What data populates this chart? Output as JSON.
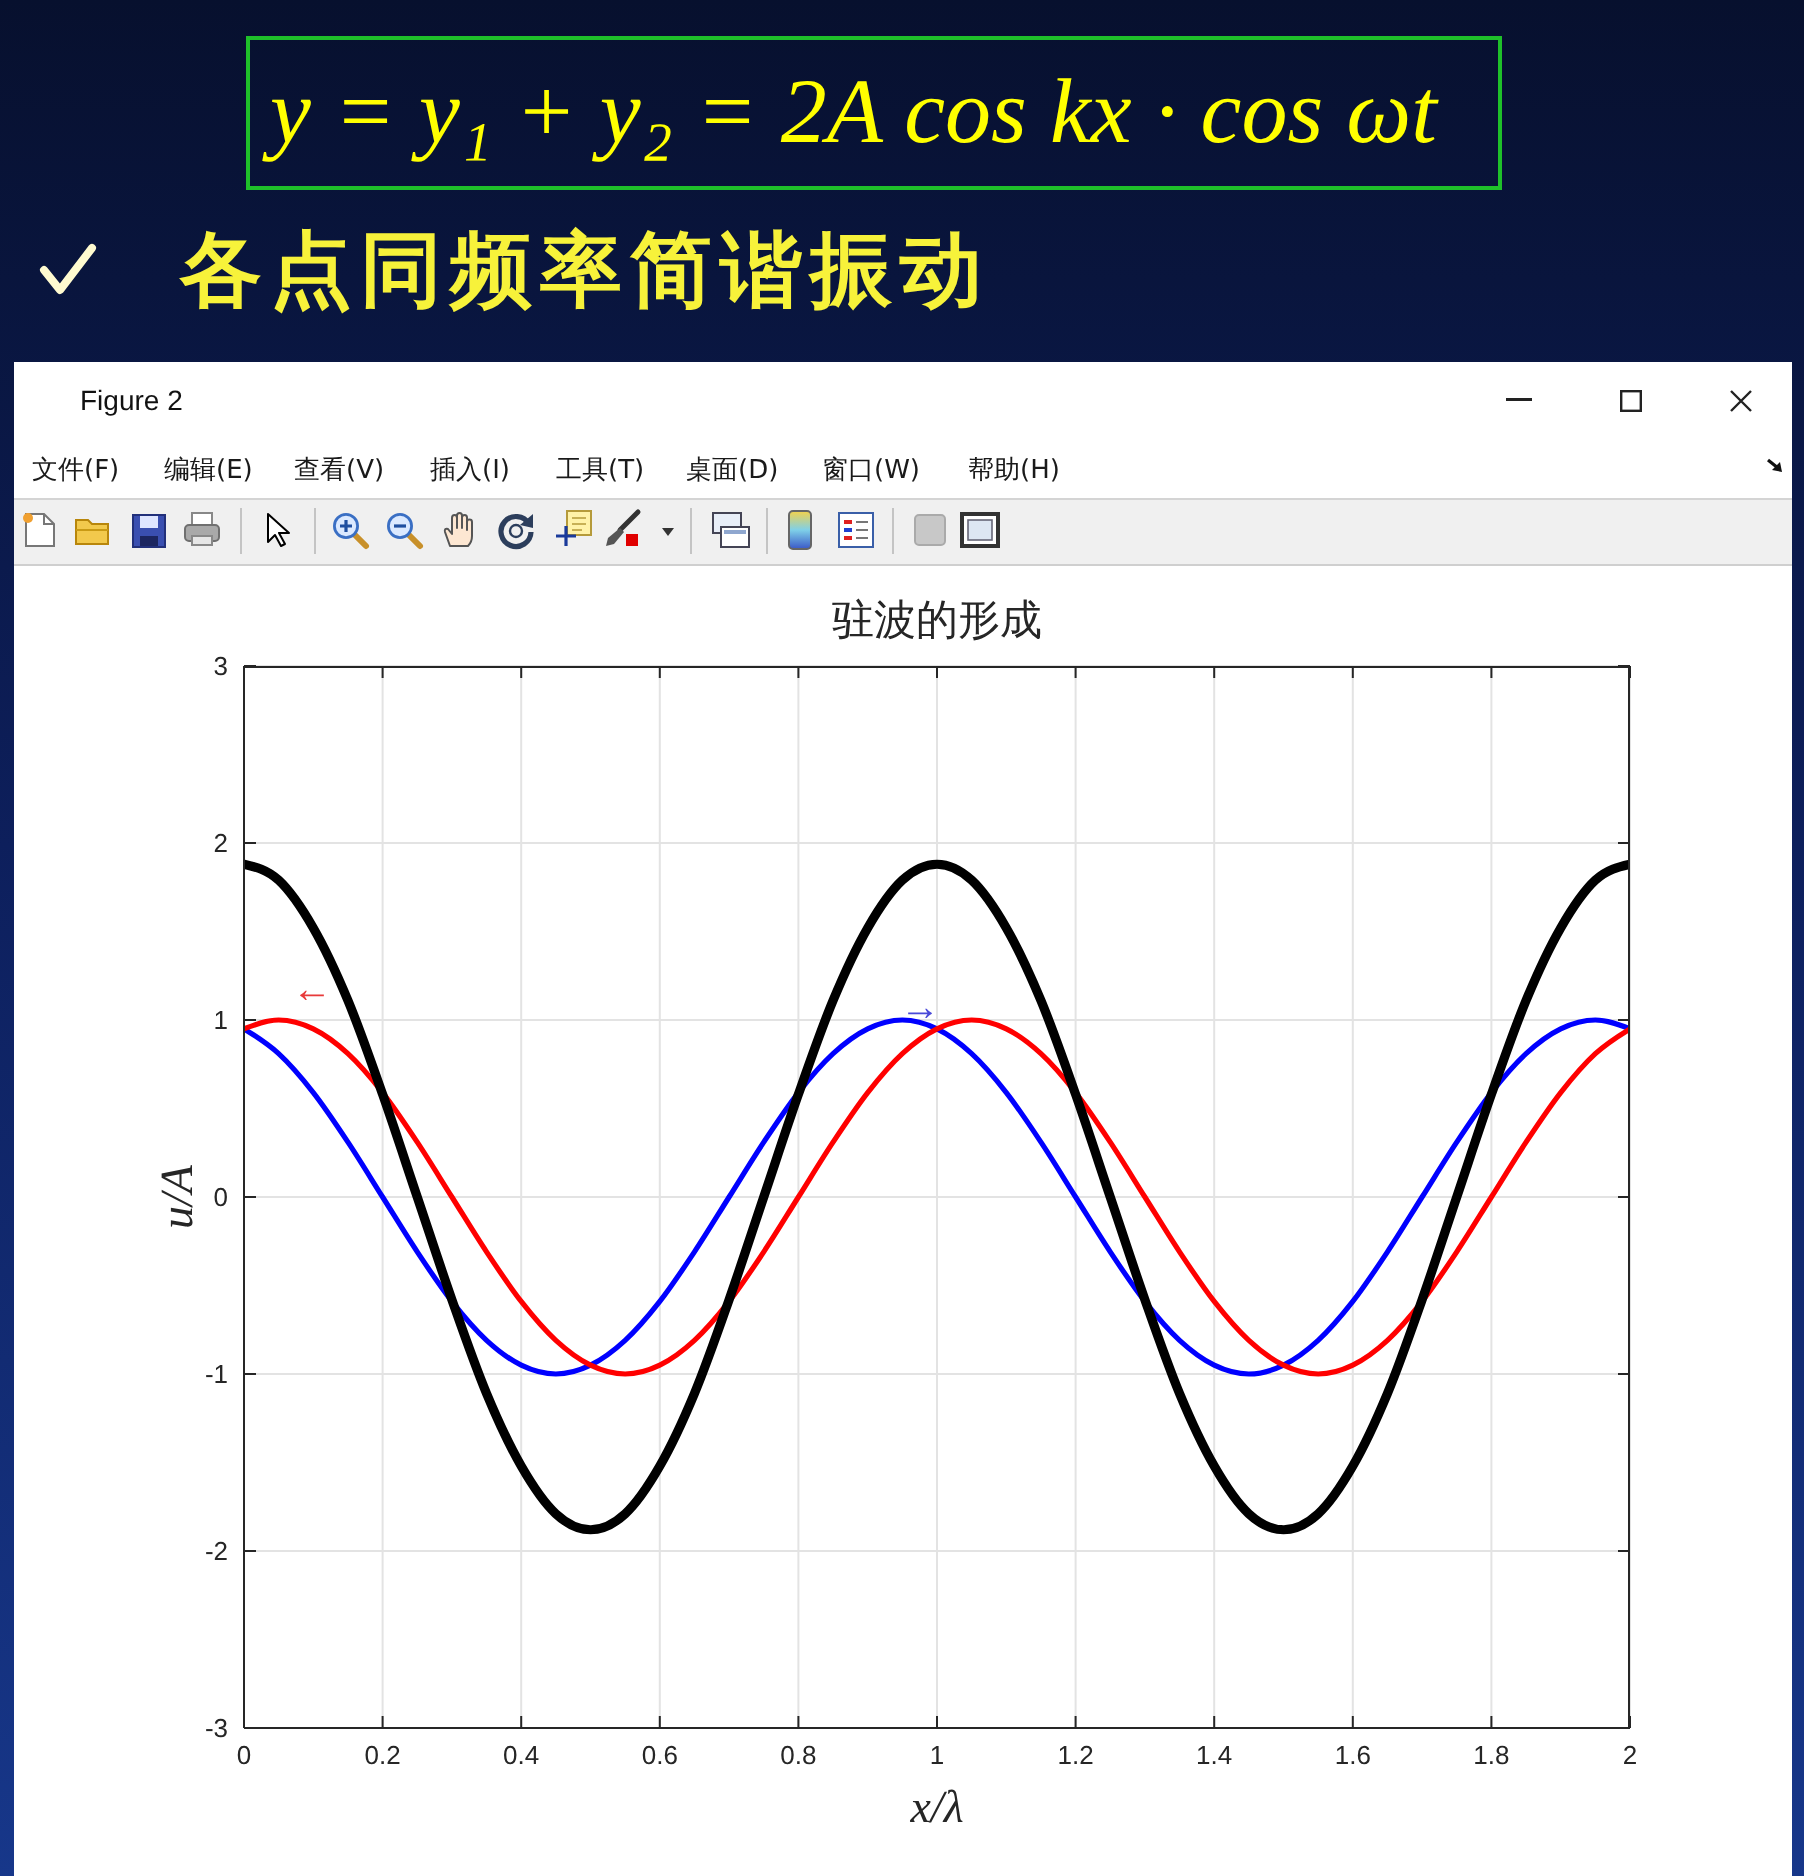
{
  "chart_data": {
    "type": "line",
    "title": "驻波的形成",
    "xlabel": "x/λ",
    "ylabel": "u/A",
    "annotations": [
      "y = y₁ + y₂ = 2A cos kx · cos ωt",
      "各点同频率简谐振动",
      "Figure 2",
      "文件(F)",
      "编辑(E)",
      "查看(V)",
      "插入(I)",
      "工具(T)",
      "桌面(D)",
      "窗口(W)",
      "帮助(H)",
      "←",
      "→"
    ],
    "x": [
      0,
      0.05,
      0.1,
      0.15,
      0.2,
      0.25,
      0.3,
      0.35,
      0.4,
      0.45,
      0.5,
      0.55,
      0.6,
      0.65,
      0.7,
      0.75,
      0.8,
      0.85,
      0.9,
      0.95,
      1,
      1.05,
      1.1,
      1.15,
      1.2,
      1.25,
      1.3,
      1.35,
      1.4,
      1.45,
      1.5,
      1.55,
      1.6,
      1.65,
      1.7,
      1.75,
      1.8,
      1.85,
      1.9,
      1.95,
      2
    ],
    "series": [
      {
        "color": "#0000ff",
        "values": [
          0.95,
          0.81,
          0.59,
          0.31,
          0,
          -0.31,
          -0.59,
          -0.81,
          -0.95,
          -1,
          -0.95,
          -0.81,
          -0.59,
          -0.31,
          0,
          0.31,
          0.59,
          0.81,
          0.95,
          1,
          0.95,
          0.81,
          0.59,
          0.31,
          0,
          -0.31,
          -0.59,
          -0.81,
          -0.95,
          -1,
          -0.95,
          -0.81,
          -0.59,
          -0.31,
          0,
          0.31,
          0.59,
          0.81,
          0.95,
          1,
          0.95
        ]
      },
      {
        "color": "#ff0000",
        "values": [
          0.95,
          1,
          0.95,
          0.81,
          0.59,
          0.31,
          0,
          -0.31,
          -0.59,
          -0.81,
          -0.95,
          -1,
          -0.95,
          -0.81,
          -0.59,
          -0.31,
          0,
          0.31,
          0.59,
          0.81,
          0.95,
          1,
          0.95,
          0.81,
          0.59,
          0.31,
          0,
          -0.31,
          -0.59,
          -0.81,
          -0.95,
          -1,
          -0.95,
          -0.81,
          -0.59,
          -0.31,
          0,
          0.31,
          0.59,
          0.81,
          0.95
        ]
      },
      {
        "color": "#000000",
        "values": [
          1.88,
          1.79,
          1.52,
          1.11,
          0.58,
          0,
          -0.58,
          -1.11,
          -1.52,
          -1.79,
          -1.88,
          -1.79,
          -1.52,
          -1.11,
          -0.58,
          0,
          0.58,
          1.11,
          1.52,
          1.79,
          1.88,
          1.79,
          1.52,
          1.11,
          0.58,
          0,
          -0.58,
          -1.11,
          -1.52,
          -1.79,
          -1.88,
          -1.79,
          -1.52,
          -1.11,
          -0.58,
          0,
          0.58,
          1.11,
          1.52,
          1.79,
          1.88
        ]
      }
    ],
    "xlim": [
      0,
      2
    ],
    "ylim": [
      -3,
      3
    ],
    "xticks": [
      0,
      0.2,
      0.4,
      0.6,
      0.8,
      1,
      1.2,
      1.4,
      1.6,
      1.8,
      2
    ],
    "yticks": [
      -3,
      -2,
      -1,
      0,
      1,
      2,
      3
    ],
    "grid": true
  }
}
